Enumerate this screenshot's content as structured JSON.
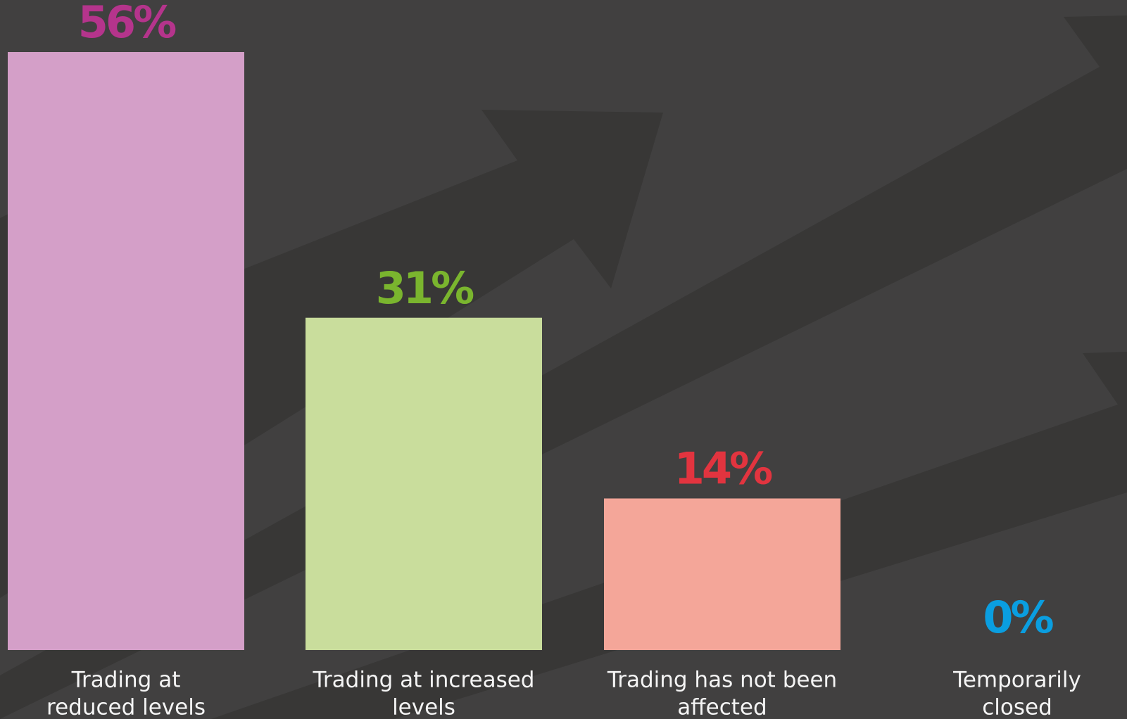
{
  "chart_data": {
    "type": "bar",
    "categories": [
      [
        "Trading at",
        "reduced levels"
      ],
      [
        "Trading at increased",
        "levels"
      ],
      [
        "Trading has not been",
        "affected"
      ],
      [
        "Temporarily",
        "closed"
      ]
    ],
    "values": [
      56,
      31,
      14,
      0
    ],
    "value_labels": [
      "56%",
      "31%",
      "14%",
      "0%"
    ],
    "colors": [
      "#d49fc8",
      "#c9dd9c",
      "#f4a699",
      "#7bc8ec"
    ],
    "label_colors": [
      "#b5348c",
      "#7ab52e",
      "#e2343f",
      "#0a9ee0"
    ]
  }
}
